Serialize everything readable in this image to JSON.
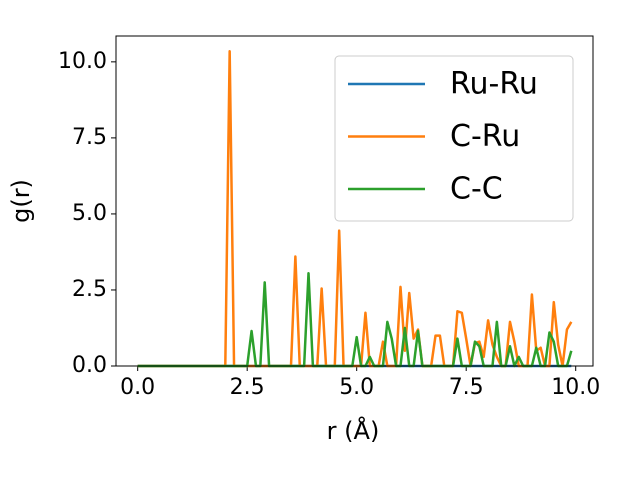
{
  "chart_data": {
    "type": "line",
    "x": [
      0.0,
      0.1,
      0.2,
      0.3,
      0.4,
      0.5,
      0.6,
      0.7,
      0.8,
      0.9,
      1.0,
      1.1,
      1.2,
      1.3,
      1.4,
      1.5,
      1.6,
      1.7,
      1.8,
      1.9,
      2.0,
      2.1,
      2.2,
      2.3,
      2.4,
      2.5,
      2.6,
      2.7,
      2.8,
      2.9,
      3.0,
      3.1,
      3.2,
      3.3,
      3.4,
      3.5,
      3.6,
      3.7,
      3.8,
      3.9,
      4.0,
      4.1,
      4.2,
      4.3,
      4.4,
      4.5,
      4.6,
      4.7,
      4.8,
      4.9,
      5.0,
      5.1,
      5.2,
      5.3,
      5.4,
      5.5,
      5.6,
      5.7,
      5.8,
      5.9,
      6.0,
      6.1,
      6.2,
      6.3,
      6.4,
      6.5,
      6.6,
      6.7,
      6.8,
      6.9,
      7.0,
      7.1,
      7.2,
      7.3,
      7.4,
      7.5,
      7.6,
      7.7,
      7.8,
      7.9,
      8.0,
      8.1,
      8.2,
      8.3,
      8.4,
      8.5,
      8.6,
      8.7,
      8.8,
      8.9,
      9.0,
      9.1,
      9.2,
      9.3,
      9.4,
      9.5,
      9.6,
      9.7,
      9.8,
      9.9
    ],
    "series": [
      {
        "name": "Ru-Ru",
        "color": "#1f77b4",
        "values": [
          0,
          0,
          0,
          0,
          0,
          0,
          0,
          0,
          0,
          0,
          0,
          0,
          0,
          0,
          0,
          0,
          0,
          0,
          0,
          0,
          0,
          0,
          0,
          0,
          0,
          0,
          0,
          0,
          0,
          0,
          0,
          0,
          0,
          0,
          0,
          0,
          0,
          0,
          0,
          0,
          0,
          0,
          0,
          0,
          0,
          0,
          0,
          0,
          0,
          0,
          0,
          0,
          0,
          0,
          0,
          0,
          0,
          0,
          0,
          0,
          0,
          0,
          0,
          0,
          0,
          0,
          0,
          0,
          0,
          0,
          0,
          0,
          0,
          0,
          0,
          0,
          0,
          0,
          0,
          0,
          0,
          0,
          0,
          0,
          0,
          0,
          0,
          0,
          0,
          0,
          0,
          0,
          0,
          0,
          0,
          0,
          0,
          0,
          0,
          0
        ]
      },
      {
        "name": "C-Ru",
        "color": "#ff7f0e",
        "values": [
          0,
          0,
          0,
          0,
          0,
          0,
          0,
          0,
          0,
          0,
          0,
          0,
          0,
          0,
          0,
          0,
          0,
          0,
          0,
          0,
          0,
          10.35,
          0,
          0,
          0,
          0,
          0,
          0,
          0,
          0,
          0,
          0,
          0,
          0,
          0,
          0,
          3.6,
          0,
          0,
          0,
          0,
          0,
          2.55,
          0,
          0,
          0,
          4.45,
          0,
          0,
          0,
          0,
          0,
          1.75,
          0,
          0,
          0,
          0.8,
          0,
          0,
          0,
          2.6,
          0.5,
          2.4,
          0.9,
          1.2,
          0,
          0,
          0,
          1.0,
          1.0,
          0,
          0,
          0,
          1.8,
          1.75,
          0.9,
          0,
          0.75,
          0.8,
          0.3,
          1.5,
          0.7,
          0.3,
          0,
          0,
          1.45,
          0.8,
          0,
          0,
          0,
          2.35,
          0.5,
          0.6,
          0,
          0,
          2.1,
          0.7,
          0,
          1.2,
          1.45
        ]
      },
      {
        "name": "C-C",
        "color": "#2ca02c",
        "values": [
          0,
          0,
          0,
          0,
          0,
          0,
          0,
          0,
          0,
          0,
          0,
          0,
          0,
          0,
          0,
          0,
          0,
          0,
          0,
          0,
          0,
          0,
          0,
          0,
          0,
          0,
          1.15,
          0,
          0,
          2.75,
          0,
          0,
          0,
          0,
          0,
          0,
          0,
          0,
          0,
          3.05,
          0,
          0,
          0,
          0,
          0,
          0,
          0,
          0,
          0,
          0,
          0.95,
          0,
          0,
          0.3,
          0,
          0,
          0,
          1.45,
          0.9,
          0,
          0,
          1.25,
          0,
          0,
          1.15,
          0,
          0,
          0,
          0,
          0,
          0,
          0,
          0,
          0.9,
          0,
          0,
          0,
          0.8,
          0.65,
          0,
          0,
          0,
          1.45,
          0,
          0,
          0.65,
          0,
          0.3,
          0,
          0,
          0,
          0.6,
          0,
          0,
          1.1,
          0.8,
          0,
          0,
          0,
          0.5
        ]
      }
    ],
    "xlabel": "r (Å)",
    "ylabel": "g(r)",
    "xlim": [
      -0.495,
      10.395
    ],
    "ylim": [
      0,
      10.85
    ],
    "xticks": [
      {
        "value": 0,
        "label": "0.0"
      },
      {
        "value": 2.5,
        "label": "2.5"
      },
      {
        "value": 5,
        "label": "5.0"
      },
      {
        "value": 7.5,
        "label": "7.5"
      },
      {
        "value": 10,
        "label": "10.0"
      }
    ],
    "yticks": [
      {
        "value": 0,
        "label": "0.0"
      },
      {
        "value": 2.5,
        "label": "2.5"
      },
      {
        "value": 5,
        "label": "5.0"
      },
      {
        "value": 7.5,
        "label": "7.5"
      },
      {
        "value": 10,
        "label": "10.0"
      }
    ],
    "legend": "upper right"
  }
}
